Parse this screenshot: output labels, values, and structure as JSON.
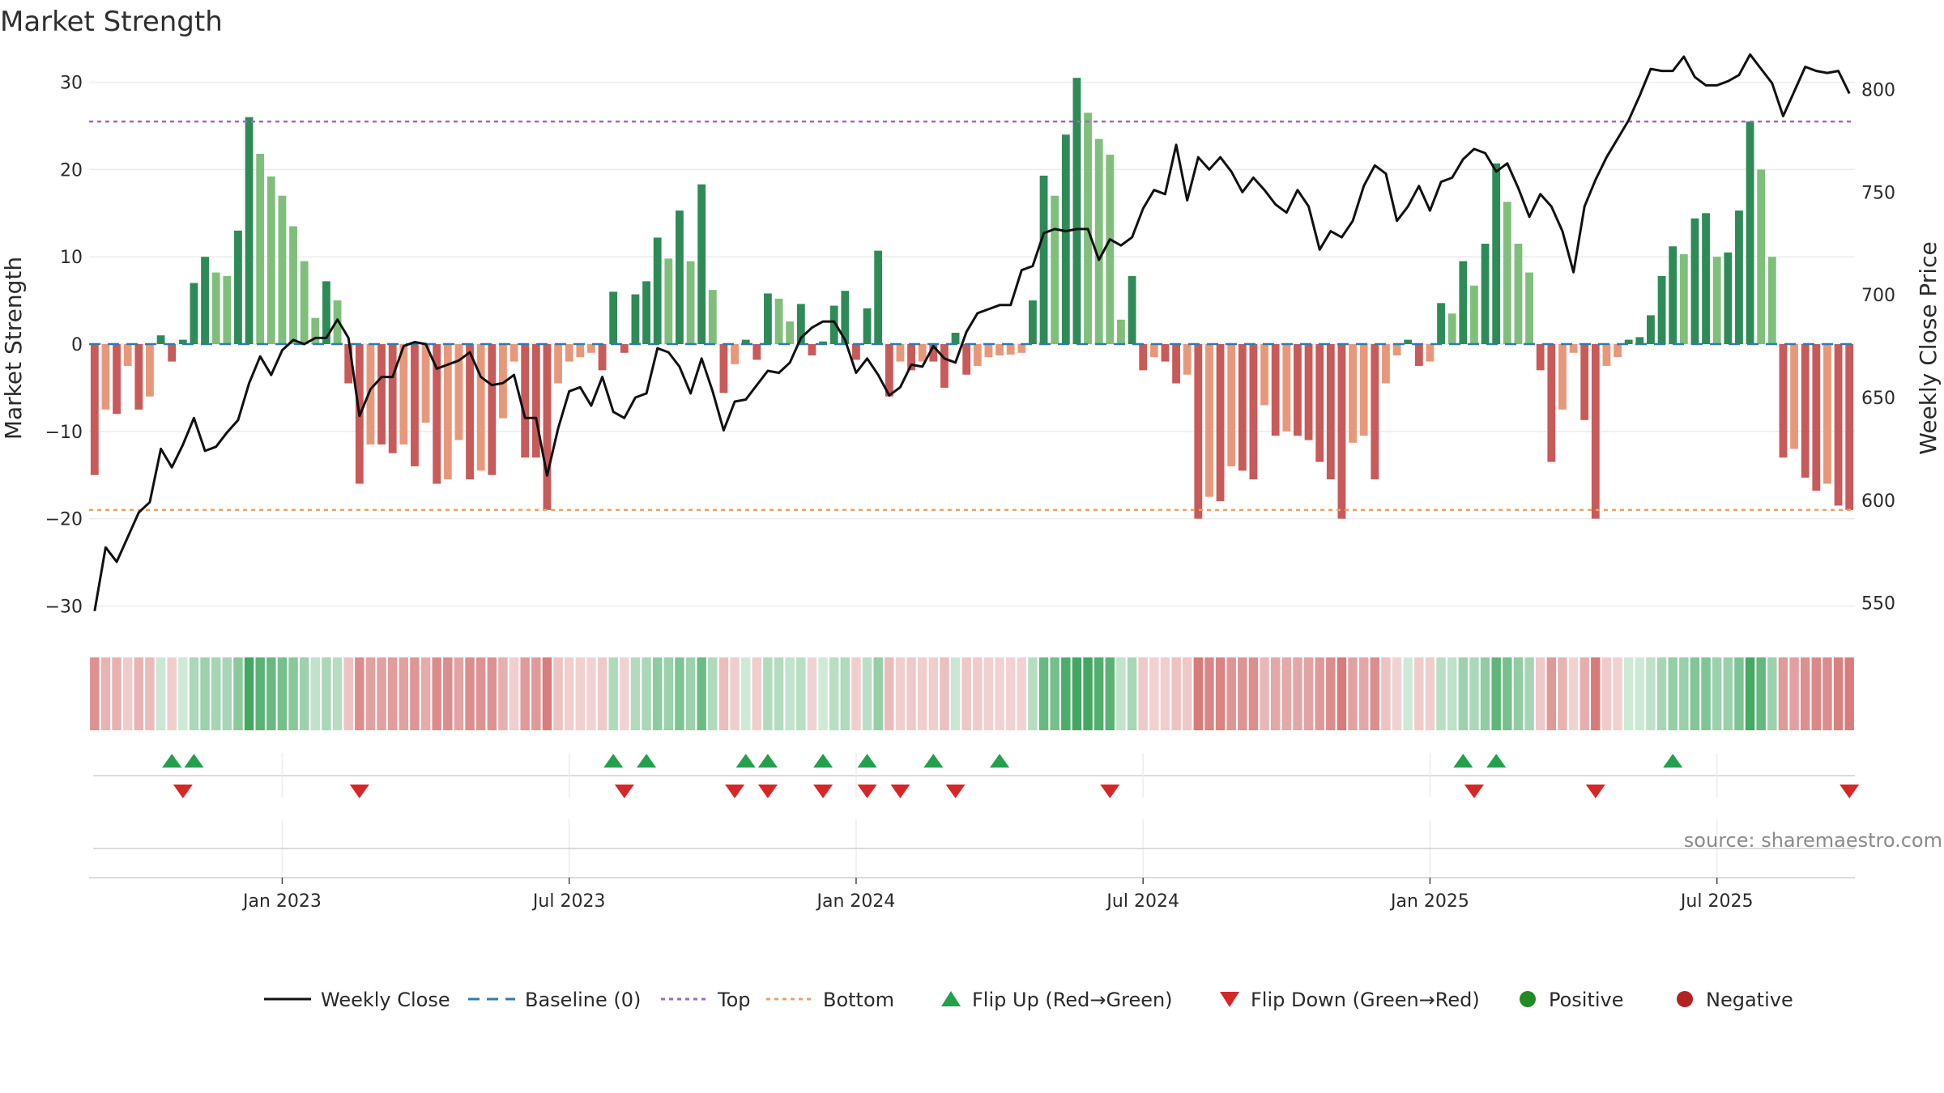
{
  "chart_data": {
    "type": "bar",
    "title": "Market Strength",
    "ylabel": "Market Strength",
    "y2label": "Weekly Close Price",
    "ylim": [
      -32,
      32
    ],
    "y2lim": [
      540,
      812
    ],
    "yticks": [
      -30,
      -20,
      -10,
      0,
      10,
      20,
      30
    ],
    "yticks_labels": [
      "−30",
      "−20",
      "−10",
      "0",
      "10",
      "20",
      "30"
    ],
    "y2ticks": [
      550,
      600,
      650,
      700,
      750,
      800
    ],
    "xticks": [
      {
        "label": "Jan 2023",
        "week": 17
      },
      {
        "label": "Jul 2023",
        "week": 43
      },
      {
        "label": "Jan 2024",
        "week": 69
      },
      {
        "label": "Jul 2024",
        "week": 95
      },
      {
        "label": "Jan 2025",
        "week": 121
      },
      {
        "label": "Jul 2025",
        "week": 147
      }
    ],
    "top_level": 25.5,
    "bottom_level": -19,
    "grid": true,
    "legend_position": "bottom-center",
    "colors": {
      "pos_dark": "#2e8b57",
      "pos_light": "#7fbf7b",
      "neg_dark": "#c85a5a",
      "neg_light": "#e8987a",
      "close": "#111111",
      "baseline": "#2f7bb0",
      "top": "#9c6ac8",
      "bottom": "#f0a060",
      "flip_up": "#22a04c",
      "flip_down": "#d62728",
      "positive": "#228b22",
      "negative": "#b22222"
    },
    "strength": [
      -15,
      -7.5,
      -8,
      -2.5,
      -7.5,
      -6,
      1,
      -2,
      0.5,
      7,
      10,
      8.2,
      7.8,
      13,
      26,
      21.8,
      19.2,
      17,
      13.5,
      9.5,
      3,
      7.2,
      5,
      -4.5,
      -16,
      -11.5,
      -11.5,
      -12.5,
      -11.5,
      -14,
      -9,
      -16,
      -15.5,
      -11,
      -15.5,
      -14.5,
      -15,
      -8.5,
      -2,
      -13,
      -13,
      -19,
      -4.5,
      -2,
      -1.5,
      -1,
      -3,
      6,
      -1,
      5.7,
      7.2,
      12.2,
      9.8,
      15.3,
      9.5,
      18.3,
      6.2,
      -5.6,
      -2.3,
      0.5,
      -1.8,
      5.8,
      5.2,
      2.6,
      4.6,
      -1.3,
      0.3,
      4.4,
      6.1,
      -1.8,
      4.1,
      10.7,
      -6,
      -2,
      -3,
      -2,
      -2,
      -5,
      1.3,
      -3.5,
      -2.5,
      -1.5,
      -1.3,
      -1.2,
      -1,
      5,
      19.3,
      17,
      24,
      30.5,
      26.5,
      23.5,
      21.7,
      2.8,
      7.8,
      -3,
      -1.5,
      -2,
      -4.5,
      -3.5,
      -20,
      -17.5,
      -18,
      -14,
      -14.5,
      -15.5,
      -7,
      -10.5,
      -10,
      -10.5,
      -11,
      -13.5,
      -15.5,
      -20,
      -11.3,
      -10.5,
      -15.5,
      -4.5,
      -1.3,
      0.5,
      -2.5,
      -2,
      4.7,
      3.5,
      9.5,
      6.7,
      11.5,
      20.7,
      16.3,
      11.5,
      8.2,
      -3,
      -13.5,
      -7.5,
      -1,
      -8.7,
      -20,
      -2.5,
      -1.5,
      0.5,
      0.8,
      3.3,
      7.8,
      11.2,
      10.3,
      14.4,
      15,
      10,
      10.5,
      15.3,
      25.5,
      20,
      10,
      -13,
      -12,
      -15.3,
      -16.8,
      -16,
      -18.5,
      -19
    ],
    "close": [
      546,
      577,
      570,
      582,
      594,
      599,
      625,
      616,
      627,
      640,
      624,
      626,
      633,
      639,
      657,
      670,
      661,
      673,
      678,
      676,
      679,
      679,
      688,
      679,
      641,
      654,
      660,
      660,
      675,
      677,
      676,
      664,
      666,
      668,
      672,
      660,
      656,
      657,
      661,
      640,
      640,
      612,
      635,
      653,
      655,
      646,
      660,
      643,
      640,
      650,
      652,
      674,
      672,
      665,
      652,
      669,
      653,
      634,
      648,
      649,
      656,
      663,
      662,
      667,
      679,
      684,
      687,
      687,
      678,
      662,
      669,
      661,
      651,
      655,
      666,
      665,
      675,
      669,
      667,
      682,
      691,
      693,
      695,
      695,
      712,
      714,
      730,
      732,
      731,
      732,
      732,
      717,
      727,
      724,
      728,
      742,
      751,
      749,
      773,
      746,
      767,
      761,
      767,
      760,
      750,
      757,
      751,
      744,
      740,
      751,
      743,
      722,
      731,
      728,
      736,
      753,
      763,
      759,
      736,
      743,
      753,
      741,
      755,
      757,
      766,
      771,
      769,
      760,
      764,
      752,
      738,
      749,
      743,
      731,
      711,
      743,
      756,
      767,
      776,
      785,
      797,
      810,
      809,
      809,
      816,
      806,
      802,
      802,
      804,
      807,
      817,
      810,
      803,
      787,
      799,
      811,
      809,
      808,
      809,
      798
    ],
    "flip_up": [
      7,
      9,
      47,
      50,
      59,
      61,
      66,
      70,
      76,
      82,
      124,
      127,
      143
    ],
    "flip_down": [
      8,
      24,
      48,
      58,
      61,
      66,
      70,
      73,
      78,
      92,
      125,
      136,
      159
    ],
    "legend": [
      {
        "label": "Weekly Close",
        "symbol": "line",
        "style": "solid",
        "color": "#111111"
      },
      {
        "label": "Baseline (0)",
        "symbol": "line",
        "style": "dashed",
        "color": "#2f7bb0"
      },
      {
        "label": "Top",
        "symbol": "line",
        "style": "dotted",
        "color": "#9c6ac8"
      },
      {
        "label": "Bottom",
        "symbol": "line",
        "style": "dotted",
        "color": "#f0a060"
      },
      {
        "label": "Flip Up (Red→Green)",
        "symbol": "tri-up",
        "color": "#22a04c"
      },
      {
        "label": "Flip Down (Green→Red)",
        "symbol": "tri-down",
        "color": "#d62728"
      },
      {
        "label": "Positive",
        "symbol": "dot",
        "color": "#228b22"
      },
      {
        "label": "Negative",
        "symbol": "dot",
        "color": "#b22222"
      }
    ]
  },
  "source_text": "source: sharemaestro.com"
}
